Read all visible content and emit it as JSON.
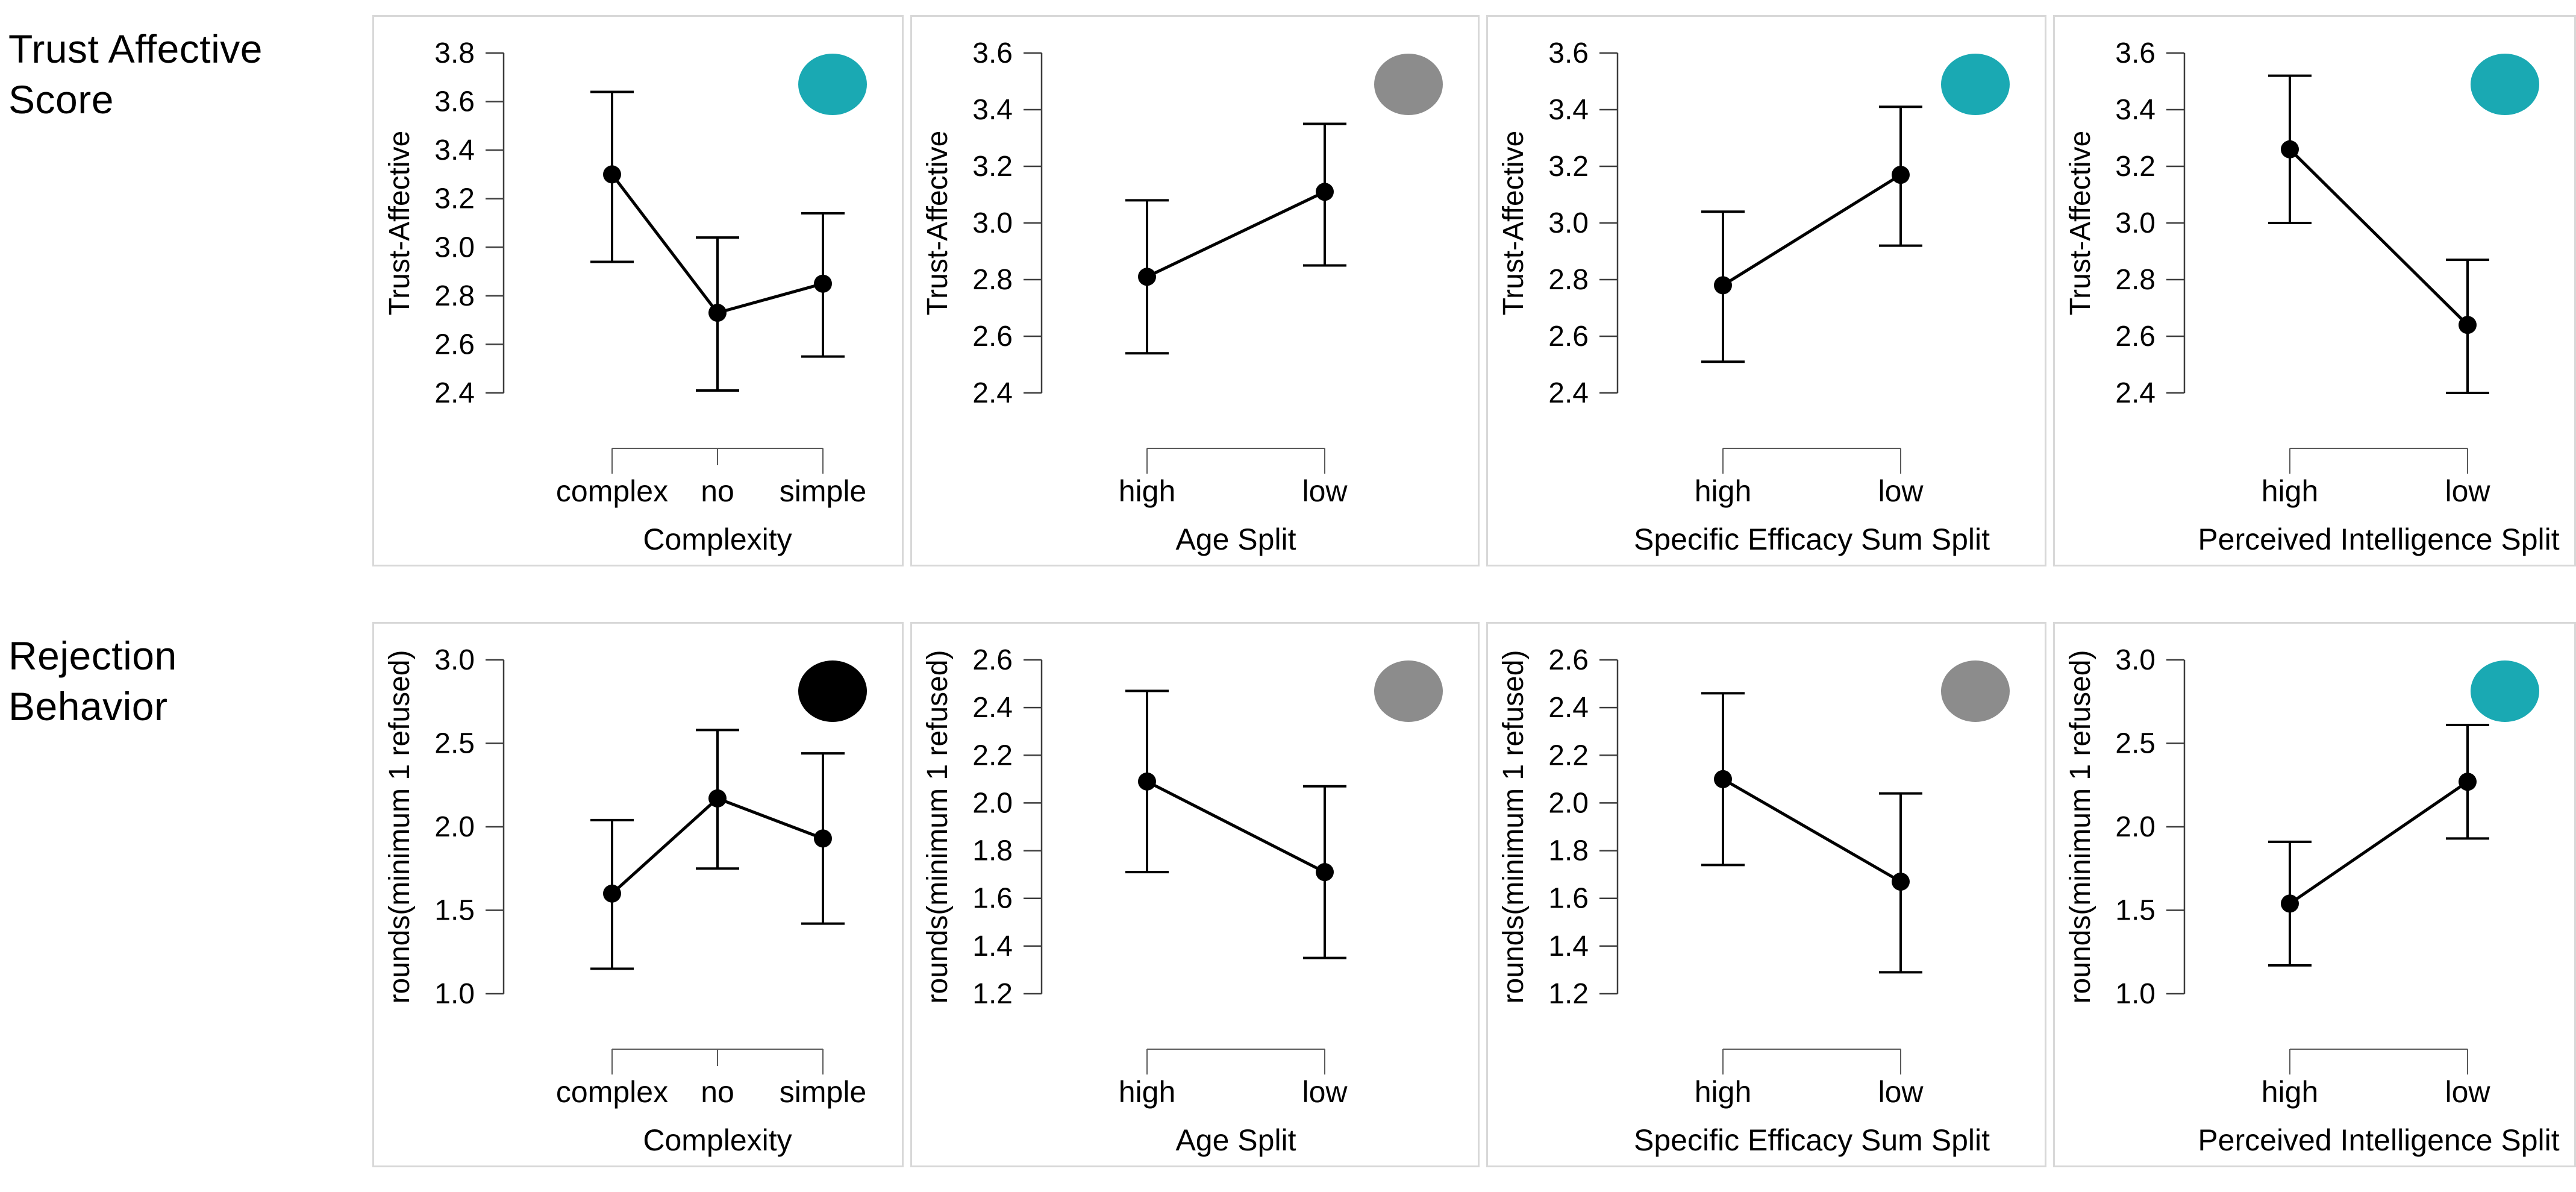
{
  "page": {
    "background": "#ffffff"
  },
  "rows": [
    {
      "label": "Trust Affective\nScore"
    },
    {
      "label": "Rejection\nBehavior"
    }
  ],
  "badge_colors": {
    "teal": "#1AA9B3",
    "gray": "#8C8C8C",
    "black": "#000000"
  },
  "style": {
    "axis_color": "#3c3c3c",
    "bracket_color": "#5a5a5a",
    "data_color": "#000000",
    "panel_border": "#d8d8d8"
  },
  "chart_data": {
    "type": "line",
    "description": "2x4 grid of interaction plots showing means with confidence-interval error bars; corner badge circle per panel",
    "legend_position": "none",
    "grid": false,
    "panels": [
      {
        "id": "trust-complexity",
        "row": 0,
        "ylabel": "Trust-Affective",
        "xlabel": "Complexity",
        "categories": [
          "complex",
          "no",
          "simple"
        ],
        "ylim": [
          2.4,
          3.8
        ],
        "yticks": [
          2.4,
          2.6,
          2.8,
          3.0,
          3.2,
          3.4,
          3.6,
          3.8
        ],
        "means": [
          3.3,
          2.73,
          2.85
        ],
        "ci_low": [
          2.94,
          2.41,
          2.55
        ],
        "ci_high": [
          3.64,
          3.04,
          3.14
        ],
        "badge": "teal"
      },
      {
        "id": "trust-age-split",
        "row": 0,
        "ylabel": "Trust-Affective",
        "xlabel": "Age Split",
        "categories": [
          "high",
          "low"
        ],
        "ylim": [
          2.4,
          3.6
        ],
        "yticks": [
          2.4,
          2.6,
          2.8,
          3.0,
          3.2,
          3.4,
          3.6
        ],
        "means": [
          2.81,
          3.11
        ],
        "ci_low": [
          2.54,
          2.85
        ],
        "ci_high": [
          3.08,
          3.35
        ],
        "badge": "gray"
      },
      {
        "id": "trust-specific-efficacy",
        "row": 0,
        "ylabel": "Trust-Affective",
        "xlabel": "Specific Efficacy Sum Split",
        "categories": [
          "high",
          "low"
        ],
        "ylim": [
          2.4,
          3.6
        ],
        "yticks": [
          2.4,
          2.6,
          2.8,
          3.0,
          3.2,
          3.4,
          3.6
        ],
        "means": [
          2.78,
          3.17
        ],
        "ci_low": [
          2.51,
          2.92
        ],
        "ci_high": [
          3.04,
          3.41
        ],
        "badge": "teal"
      },
      {
        "id": "trust-perceived-intelligence",
        "row": 0,
        "ylabel": "Trust-Affective",
        "xlabel": "Perceived Intelligence  Split",
        "categories": [
          "high",
          "low"
        ],
        "ylim": [
          2.4,
          3.6
        ],
        "yticks": [
          2.4,
          2.6,
          2.8,
          3.0,
          3.2,
          3.4,
          3.6
        ],
        "means": [
          3.26,
          2.64
        ],
        "ci_low": [
          3.0,
          2.4
        ],
        "ci_high": [
          3.52,
          2.87
        ],
        "badge": "teal"
      },
      {
        "id": "rejection-complexity",
        "row": 1,
        "ylabel": "rounds(minimum 1 refused)",
        "xlabel": "Complexity",
        "categories": [
          "complex",
          "no",
          "simple"
        ],
        "ylim": [
          1.0,
          3.0
        ],
        "yticks": [
          1.0,
          1.5,
          2.0,
          2.5,
          3.0
        ],
        "means": [
          1.6,
          2.17,
          1.93
        ],
        "ci_low": [
          1.15,
          1.75,
          1.42
        ],
        "ci_high": [
          2.04,
          2.58,
          2.44
        ],
        "badge": "black"
      },
      {
        "id": "rejection-age-split",
        "row": 1,
        "ylabel": "rounds(minimum 1 refused)",
        "xlabel": "Age Split",
        "categories": [
          "high",
          "low"
        ],
        "ylim": [
          1.2,
          2.6
        ],
        "yticks": [
          1.2,
          1.4,
          1.6,
          1.8,
          2.0,
          2.2,
          2.4,
          2.6
        ],
        "means": [
          2.09,
          1.71
        ],
        "ci_low": [
          1.71,
          1.35
        ],
        "ci_high": [
          2.47,
          2.07
        ],
        "badge": "gray"
      },
      {
        "id": "rejection-specific-efficacy",
        "row": 1,
        "ylabel": "rounds(minimum 1 refused)",
        "xlabel": "Specific Efficacy Sum Split",
        "categories": [
          "high",
          "low"
        ],
        "ylim": [
          1.2,
          2.6
        ],
        "yticks": [
          1.2,
          1.4,
          1.6,
          1.8,
          2.0,
          2.2,
          2.4,
          2.6
        ],
        "means": [
          2.1,
          1.67
        ],
        "ci_low": [
          1.74,
          1.29
        ],
        "ci_high": [
          2.46,
          2.04
        ],
        "badge": "gray"
      },
      {
        "id": "rejection-perceived-intelligence",
        "row": 1,
        "ylabel": "rounds(minimum 1 refused)",
        "xlabel": "Perceived Intelligence  Split",
        "categories": [
          "high",
          "low"
        ],
        "ylim": [
          1.0,
          3.0
        ],
        "yticks": [
          1.0,
          1.5,
          2.0,
          2.5,
          3.0
        ],
        "means": [
          1.54,
          2.27
        ],
        "ci_low": [
          1.17,
          1.93
        ],
        "ci_high": [
          1.91,
          2.61
        ],
        "badge": "teal"
      }
    ]
  }
}
